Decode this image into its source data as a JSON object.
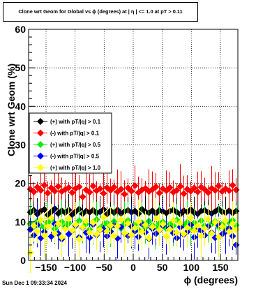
{
  "canvas_title": "Clone wrt Geom for Global vs ϕ (degrees) at |  η  | <= 1.0 at pT > 0.11",
  "footer_timestamp": "Sun Dec  1 09:33:34 2024",
  "chart_data": {
    "type": "scatter",
    "title": "Clone wrt Geom for Global vs ϕ (degrees) at |  η  | <= 1.0 at pT > 0.11",
    "xlabel": "ϕ (degrees)",
    "ylabel": "Clone wrt Geom (%)",
    "xlim": [
      -180,
      180
    ],
    "ylim": [
      0,
      60
    ],
    "x_ticks": [
      -150,
      -100,
      -50,
      0,
      50,
      100,
      150
    ],
    "x_tick_labels": [
      "−150",
      "−100",
      "−50",
      "0",
      "50",
      "100",
      "150"
    ],
    "y_ticks": [
      0,
      10,
      20,
      30,
      40,
      50,
      60
    ],
    "y_tick_labels": [
      "0",
      "10",
      "20",
      "30",
      "40",
      "50",
      "60"
    ],
    "grid": true,
    "legend_position": "left, middle",
    "bins": 60,
    "series": [
      {
        "name": "(+) with pT/|q| > 0.1",
        "color": "#000000",
        "marker": "diamond",
        "values": [
          12.5,
          13.0,
          12.0,
          12.8,
          13.2,
          11.8,
          12.6,
          13.4,
          12.2,
          12.9,
          12.4,
          13.1,
          11.9,
          12.7,
          13.3,
          12.1,
          12.8,
          12.5,
          13.0,
          12.3,
          12.6,
          13.2,
          12.0,
          12.9,
          12.4,
          13.1,
          12.2,
          12.7,
          13.0,
          12.5,
          12.8,
          12.1,
          13.3,
          12.6,
          12.4,
          12.9,
          12.2,
          13.0,
          12.7,
          12.3,
          12.8,
          13.1,
          12.5,
          12.0,
          12.9,
          12.6,
          13.2,
          12.4,
          12.1,
          12.8,
          13.0,
          12.5,
          12.2,
          12.7,
          13.3,
          12.6,
          12.4,
          12.9,
          12.3,
          12.8
        ]
      },
      {
        "name": "(-) with pT/|q| > 0.1",
        "color": "#ff0000",
        "marker": "diamond",
        "values": [
          18.5,
          17.8,
          19.0,
          18.2,
          19.5,
          17.5,
          18.8,
          18.0,
          19.2,
          17.9,
          18.4,
          18.9,
          17.6,
          18.7,
          19.1,
          16.5,
          18.3,
          17.7,
          19.3,
          18.1,
          18.6,
          17.4,
          18.9,
          18.2,
          19.0,
          17.8,
          18.5,
          17.2,
          18.8,
          18.0,
          19.4,
          17.6,
          18.3,
          18.7,
          17.9,
          18.4,
          19.1,
          17.5,
          18.6,
          18.1,
          18.9,
          17.7,
          18.2,
          19.2,
          17.3,
          18.5,
          18.0,
          18.8,
          17.8,
          19.0,
          18.4,
          17.6,
          18.7,
          18.2,
          19.3,
          17.9,
          18.6,
          18.1,
          19.5,
          18.3
        ]
      },
      {
        "name": "(+) with pT/|q| > 0.5",
        "color": "#00ee00",
        "marker": "diamond",
        "values": [
          9.5,
          8.8,
          10.2,
          9.0,
          8.5,
          9.8,
          10.5,
          8.2,
          9.3,
          10.0,
          8.9,
          9.6,
          7.8,
          9.1,
          10.3,
          8.6,
          9.4,
          8.0,
          9.9,
          10.6,
          8.4,
          9.2,
          9.7,
          8.7,
          10.1,
          9.0,
          8.3,
          9.5,
          10.4,
          8.8,
          9.3,
          7.9,
          9.8,
          8.5,
          10.2,
          9.1,
          8.6,
          9.6,
          10.0,
          8.2,
          9.4,
          9.0,
          10.5,
          8.7,
          9.2,
          9.9,
          8.4,
          9.7,
          8.1,
          10.3,
          9.0,
          8.8,
          9.5,
          10.1,
          8.6,
          9.3,
          8.3,
          9.8,
          10.4,
          9.1
        ]
      },
      {
        "name": "(-) with pT/|q| > 0.5",
        "color": "#0000ff",
        "marker": "diamond",
        "values": [
          8.0,
          6.5,
          9.2,
          5.8,
          7.4,
          8.8,
          6.2,
          9.5,
          7.0,
          5.5,
          8.3,
          6.8,
          7.7,
          9.0,
          6.0,
          8.5,
          7.2,
          5.9,
          9.3,
          6.6,
          7.9,
          8.1,
          6.3,
          7.5,
          9.1,
          5.7,
          8.7,
          7.0,
          6.4,
          8.9,
          7.6,
          6.1,
          9.4,
          7.3,
          5.6,
          8.2,
          6.9,
          7.8,
          9.0,
          6.2,
          8.4,
          7.1,
          5.8,
          8.6,
          6.7,
          7.4,
          9.2,
          6.0,
          8.0,
          7.7,
          6.5,
          8.8,
          7.2,
          5.9,
          9.1,
          6.8,
          7.5,
          8.3,
          6.3,
          4.0
        ]
      },
      {
        "name": "(+) with pT/|q| > 1.0",
        "color": "#ffff00",
        "marker": "diamond",
        "values": [
          2.0,
          9.0,
          7.5,
          10.5,
          6.5,
          8.8,
          11.0,
          7.0,
          9.5,
          6.0,
          8.2,
          10.8,
          7.8,
          9.3,
          5.5,
          8.6,
          10.2,
          7.3,
          9.8,
          6.8,
          8.0,
          11.2,
          7.6,
          9.1,
          6.3,
          8.9,
          10.6,
          7.1,
          9.6,
          6.6,
          8.4,
          10.0,
          7.4,
          9.2,
          5.8,
          8.7,
          10.9,
          7.9,
          9.4,
          6.2,
          8.1,
          10.4,
          7.2,
          9.7,
          6.9,
          8.5,
          11.1,
          7.7,
          9.0,
          6.4,
          8.3,
          10.7,
          7.0,
          9.9,
          6.1,
          8.8,
          10.3,
          7.5,
          9.5,
          8.0
        ]
      }
    ]
  }
}
